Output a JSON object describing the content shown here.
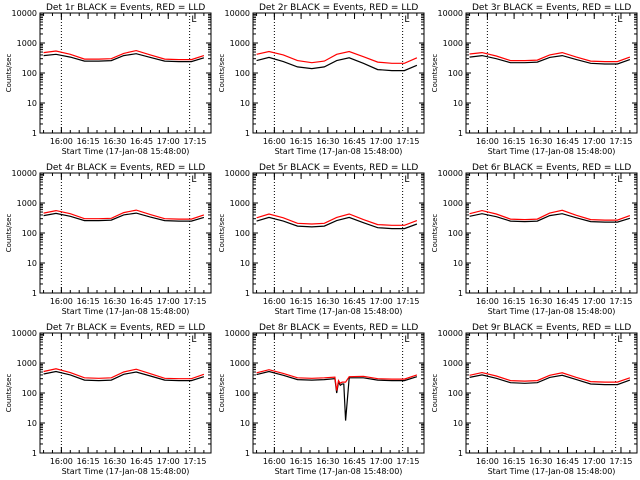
{
  "colors": {
    "events": "#000000",
    "lld": "#ff0000",
    "axis": "#000000",
    "background": "#ffffff"
  },
  "chart_data": [
    {
      "type": "line",
      "title": "Det 1r BLACK = Events, RED = LLD",
      "xlabel": "Start Time (17-Jan-08 15:48:00)",
      "ylabel": "Counts/sec",
      "yscale": "log",
      "ylim": [
        1,
        10000
      ],
      "x_ticks": [
        "16:00",
        "16:15",
        "16:30",
        "16:45",
        "17:00",
        "17:15"
      ],
      "y_ticks": [
        "1",
        "10",
        "100",
        "1000",
        "10000"
      ],
      "corner_label": "L",
      "x": [
        "15:50",
        "15:57",
        "16:05",
        "16:13",
        "16:21",
        "16:28",
        "16:35",
        "16:42",
        "16:50",
        "16:58",
        "17:06",
        "17:13",
        "17:20"
      ],
      "series": [
        {
          "name": "Events",
          "values": [
            380,
            420,
            340,
            250,
            250,
            260,
            380,
            440,
            330,
            250,
            240,
            240,
            320
          ]
        },
        {
          "name": "LLD",
          "values": [
            480,
            540,
            420,
            290,
            290,
            300,
            450,
            560,
            400,
            290,
            280,
            280,
            380
          ]
        }
      ],
      "vlines": [
        "16:00",
        "17:12"
      ]
    },
    {
      "type": "line",
      "title": "Det 2r BLACK = Events, RED = LLD",
      "xlabel": "Start Time (17-Jan-08 15:48:00)",
      "ylabel": "Counts/sec",
      "yscale": "log",
      "ylim": [
        1,
        10000
      ],
      "x_ticks": [
        "16:00",
        "16:15",
        "16:30",
        "16:45",
        "17:00",
        "17:15"
      ],
      "y_ticks": [
        "1",
        "10",
        "100",
        "1000",
        "10000"
      ],
      "corner_label": "L",
      "x": [
        "15:50",
        "15:57",
        "16:05",
        "16:13",
        "16:21",
        "16:28",
        "16:35",
        "16:42",
        "16:50",
        "16:58",
        "17:06",
        "17:13",
        "17:20"
      ],
      "series": [
        {
          "name": "Events",
          "values": [
            260,
            330,
            240,
            160,
            140,
            160,
            260,
            320,
            210,
            130,
            120,
            120,
            180
          ]
        },
        {
          "name": "LLD",
          "values": [
            420,
            520,
            400,
            260,
            220,
            250,
            420,
            520,
            350,
            230,
            210,
            210,
            320
          ]
        }
      ],
      "vlines": [
        "16:00",
        "17:12"
      ]
    },
    {
      "type": "line",
      "title": "Det 3r BLACK = Events, RED = LLD",
      "xlabel": "Start Time (17-Jan-08 15:48:00)",
      "ylabel": "Counts/sec",
      "yscale": "log",
      "ylim": [
        1,
        10000
      ],
      "x_ticks": [
        "16:00",
        "16:15",
        "16:30",
        "16:45",
        "17:00",
        "17:15"
      ],
      "y_ticks": [
        "1",
        "10",
        "100",
        "1000",
        "10000"
      ],
      "corner_label": "L",
      "x": [
        "15:50",
        "15:57",
        "16:05",
        "16:13",
        "16:21",
        "16:28",
        "16:35",
        "16:42",
        "16:50",
        "16:58",
        "17:06",
        "17:13",
        "17:20"
      ],
      "series": [
        {
          "name": "Events",
          "values": [
            340,
            380,
            300,
            220,
            220,
            230,
            330,
            380,
            280,
            210,
            200,
            200,
            280
          ]
        },
        {
          "name": "LLD",
          "values": [
            430,
            480,
            370,
            260,
            260,
            270,
            400,
            480,
            340,
            250,
            240,
            240,
            340
          ]
        }
      ],
      "vlines": [
        "16:00",
        "17:12"
      ]
    },
    {
      "type": "line",
      "title": "Det 4r BLACK = Events, RED = LLD",
      "xlabel": "Start Time (17-Jan-08 15:48:00)",
      "ylabel": "Counts/sec",
      "yscale": "log",
      "ylim": [
        1,
        10000
      ],
      "x_ticks": [
        "16:00",
        "16:15",
        "16:30",
        "16:45",
        "17:00",
        "17:15"
      ],
      "y_ticks": [
        "1",
        "10",
        "100",
        "1000",
        "10000"
      ],
      "corner_label": "L",
      "x": [
        "15:50",
        "15:57",
        "16:05",
        "16:13",
        "16:21",
        "16:28",
        "16:35",
        "16:42",
        "16:50",
        "16:58",
        "17:06",
        "17:13",
        "17:20"
      ],
      "series": [
        {
          "name": "Events",
          "values": [
            380,
            450,
            360,
            260,
            260,
            270,
            400,
            460,
            340,
            260,
            250,
            250,
            330
          ]
        },
        {
          "name": "LLD",
          "values": [
            460,
            560,
            440,
            300,
            300,
            310,
            480,
            580,
            410,
            300,
            290,
            290,
            400
          ]
        }
      ],
      "vlines": [
        "16:00",
        "17:12"
      ]
    },
    {
      "type": "line",
      "title": "Det 5r BLACK = Events, RED = LLD",
      "xlabel": "Start Time (17-Jan-08 15:48:00)",
      "ylabel": "Counts/sec",
      "yscale": "log",
      "ylim": [
        1,
        10000
      ],
      "x_ticks": [
        "16:00",
        "16:15",
        "16:30",
        "16:45",
        "17:00",
        "17:15"
      ],
      "y_ticks": [
        "1",
        "10",
        "100",
        "1000",
        "10000"
      ],
      "corner_label": "L",
      "x": [
        "15:50",
        "15:57",
        "16:05",
        "16:13",
        "16:21",
        "16:28",
        "16:35",
        "16:42",
        "16:50",
        "16:58",
        "17:06",
        "17:13",
        "17:20"
      ],
      "series": [
        {
          "name": "Events",
          "values": [
            250,
            330,
            250,
            170,
            160,
            170,
            260,
            330,
            220,
            150,
            140,
            140,
            200
          ]
        },
        {
          "name": "LLD",
          "values": [
            320,
            430,
            320,
            210,
            200,
            210,
            330,
            430,
            280,
            190,
            180,
            180,
            260
          ]
        }
      ],
      "vlines": [
        "16:00",
        "17:12"
      ]
    },
    {
      "type": "line",
      "title": "Det 6r BLACK = Events, RED = LLD",
      "xlabel": "Start Time (17-Jan-08 15:48:00)",
      "ylabel": "Counts/sec",
      "yscale": "log",
      "ylim": [
        1,
        10000
      ],
      "x_ticks": [
        "16:00",
        "16:15",
        "16:30",
        "16:45",
        "17:00",
        "17:15"
      ],
      "y_ticks": [
        "1",
        "10",
        "100",
        "1000",
        "10000"
      ],
      "corner_label": "L",
      "x": [
        "15:50",
        "15:57",
        "16:05",
        "16:13",
        "16:21",
        "16:28",
        "16:35",
        "16:42",
        "16:50",
        "16:58",
        "17:06",
        "17:13",
        "17:20"
      ],
      "series": [
        {
          "name": "Events",
          "values": [
            360,
            440,
            350,
            250,
            240,
            250,
            380,
            440,
            320,
            240,
            230,
            230,
            310
          ]
        },
        {
          "name": "LLD",
          "values": [
            440,
            560,
            430,
            290,
            280,
            290,
            460,
            570,
            390,
            280,
            270,
            270,
            380
          ]
        }
      ],
      "vlines": [
        "16:00",
        "17:12"
      ]
    },
    {
      "type": "line",
      "title": "Det 7r BLACK = Events, RED = LLD",
      "xlabel": "Start Time (17-Jan-08 15:48:00)",
      "ylabel": "Counts/sec",
      "yscale": "log",
      "ylim": [
        1,
        10000
      ],
      "x_ticks": [
        "16:00",
        "16:15",
        "16:30",
        "16:45",
        "17:00",
        "17:15"
      ],
      "y_ticks": [
        "1",
        "10",
        "100",
        "1000",
        "10000"
      ],
      "corner_label": "L",
      "x": [
        "15:50",
        "15:57",
        "16:05",
        "16:13",
        "16:21",
        "16:28",
        "16:35",
        "16:42",
        "16:50",
        "16:58",
        "17:06",
        "17:13",
        "17:20"
      ],
      "series": [
        {
          "name": "Events",
          "values": [
            430,
            520,
            400,
            270,
            260,
            270,
            420,
            500,
            370,
            270,
            260,
            260,
            350
          ]
        },
        {
          "name": "LLD",
          "values": [
            520,
            640,
            480,
            320,
            310,
            320,
            500,
            620,
            440,
            310,
            300,
            300,
            420
          ]
        }
      ],
      "vlines": [
        "16:00",
        "17:12"
      ]
    },
    {
      "type": "line",
      "title": "Det 8r BLACK = Events, RED = LLD",
      "xlabel": "Start Time (17-Jan-08 15:48:00)",
      "ylabel": "Counts/sec",
      "yscale": "log",
      "ylim": [
        1,
        10000
      ],
      "x_ticks": [
        "16:00",
        "16:15",
        "16:30",
        "16:45",
        "17:00",
        "17:15"
      ],
      "y_ticks": [
        "1",
        "10",
        "100",
        "1000",
        "10000"
      ],
      "corner_label": "L",
      "x": [
        "15:50",
        "15:57",
        "16:05",
        "16:13",
        "16:21",
        "16:28",
        "16:34",
        "16:35",
        "16:36",
        "16:37",
        "16:38",
        "16:39",
        "16:40",
        "16:42",
        "16:50",
        "16:58",
        "17:06",
        "17:13",
        "17:20"
      ],
      "series": [
        {
          "name": "Events",
          "values": [
            410,
            520,
            390,
            280,
            270,
            280,
            300,
            100,
            230,
            180,
            200,
            200,
            12,
            320,
            320,
            270,
            260,
            260,
            350
          ]
        },
        {
          "name": "LLD",
          "values": [
            470,
            600,
            450,
            320,
            310,
            320,
            340,
            120,
            260,
            210,
            230,
            230,
            230,
            350,
            360,
            300,
            290,
            290,
            400
          ]
        }
      ],
      "vlines": [
        "16:00",
        "17:12"
      ]
    },
    {
      "type": "line",
      "title": "Det 9r BLACK = Events, RED = LLD",
      "xlabel": "Start Time (17-Jan-08 15:48:00)",
      "ylabel": "Counts/sec",
      "yscale": "log",
      "ylim": [
        1,
        10000
      ],
      "x_ticks": [
        "16:00",
        "16:15",
        "16:30",
        "16:45",
        "17:00",
        "17:15"
      ],
      "y_ticks": [
        "1",
        "10",
        "100",
        "1000",
        "10000"
      ],
      "corner_label": "L",
      "x": [
        "15:50",
        "15:57",
        "16:05",
        "16:13",
        "16:21",
        "16:28",
        "16:35",
        "16:42",
        "16:50",
        "16:58",
        "17:06",
        "17:13",
        "17:20"
      ],
      "series": [
        {
          "name": "Events",
          "values": [
            330,
            400,
            310,
            220,
            210,
            220,
            330,
            390,
            280,
            200,
            190,
            190,
            270
          ]
        },
        {
          "name": "LLD",
          "values": [
            390,
            480,
            370,
            260,
            250,
            260,
            390,
            470,
            330,
            240,
            230,
            230,
            320
          ]
        }
      ],
      "vlines": [
        "16:00",
        "17:12"
      ]
    }
  ]
}
